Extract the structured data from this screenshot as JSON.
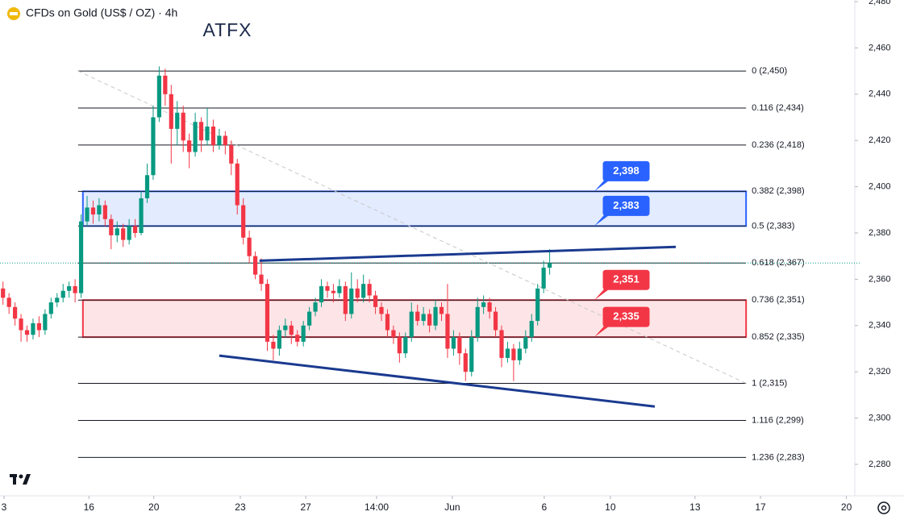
{
  "chart_data": {
    "type": "candlestick",
    "title": "CFDs on Gold (US$ / OZ) · 4h",
    "brand": "ATFX",
    "up_color": "#089981",
    "down_color": "#f23645",
    "ohlc": [
      [
        2356,
        2359,
        2349,
        2352
      ],
      [
        2352,
        2354,
        2345,
        2348
      ],
      [
        2348,
        2350,
        2340,
        2343
      ],
      [
        2343,
        2345,
        2333,
        2338
      ],
      [
        2338,
        2340,
        2333,
        2336
      ],
      [
        2336,
        2343,
        2334,
        2341
      ],
      [
        2341,
        2344,
        2335,
        2338
      ],
      [
        2338,
        2347,
        2336,
        2345
      ],
      [
        2345,
        2352,
        2343,
        2350
      ],
      [
        2350,
        2354,
        2348,
        2352
      ],
      [
        2352,
        2358,
        2350,
        2355
      ],
      [
        2355,
        2359,
        2352,
        2357
      ],
      [
        2357,
        2360,
        2350,
        2354
      ],
      [
        2354,
        2388,
        2352,
        2385
      ],
      [
        2385,
        2396,
        2383,
        2391
      ],
      [
        2391,
        2394,
        2384,
        2388
      ],
      [
        2388,
        2395,
        2385,
        2392
      ],
      [
        2392,
        2394,
        2383,
        2386
      ],
      [
        2386,
        2388,
        2373,
        2379
      ],
      [
        2379,
        2385,
        2376,
        2382
      ],
      [
        2382,
        2384,
        2374,
        2377
      ],
      [
        2377,
        2386,
        2375,
        2383
      ],
      [
        2383,
        2386,
        2378,
        2380
      ],
      [
        2380,
        2398,
        2379,
        2395
      ],
      [
        2395,
        2410,
        2393,
        2405
      ],
      [
        2405,
        2435,
        2403,
        2430
      ],
      [
        2430,
        2452,
        2428,
        2448
      ],
      [
        2448,
        2451,
        2435,
        2440
      ],
      [
        2440,
        2444,
        2410,
        2425
      ],
      [
        2425,
        2437,
        2418,
        2432
      ],
      [
        2432,
        2435,
        2415,
        2420
      ],
      [
        2420,
        2423,
        2408,
        2415
      ],
      [
        2415,
        2432,
        2413,
        2428
      ],
      [
        2428,
        2430,
        2415,
        2420
      ],
      [
        2420,
        2434,
        2418,
        2426
      ],
      [
        2426,
        2429,
        2415,
        2418
      ],
      [
        2418,
        2425,
        2416,
        2422
      ],
      [
        2422,
        2424,
        2414,
        2418
      ],
      [
        2418,
        2420,
        2405,
        2410
      ],
      [
        2410,
        2412,
        2388,
        2392
      ],
      [
        2392,
        2395,
        2375,
        2378
      ],
      [
        2378,
        2381,
        2367,
        2370
      ],
      [
        2370,
        2372,
        2360,
        2362
      ],
      [
        2362,
        2369,
        2355,
        2358
      ],
      [
        2358,
        2360,
        2329,
        2333
      ],
      [
        2333,
        2336,
        2325,
        2330
      ],
      [
        2330,
        2340,
        2327,
        2338
      ],
      [
        2338,
        2343,
        2335,
        2340
      ],
      [
        2340,
        2342,
        2332,
        2336
      ],
      [
        2336,
        2338,
        2331,
        2333
      ],
      [
        2333,
        2342,
        2331,
        2340
      ],
      [
        2340,
        2348,
        2338,
        2346
      ],
      [
        2346,
        2352,
        2344,
        2350
      ],
      [
        2350,
        2360,
        2348,
        2357
      ],
      [
        2357,
        2359,
        2352,
        2355
      ],
      [
        2355,
        2358,
        2350,
        2354
      ],
      [
        2354,
        2360,
        2352,
        2357
      ],
      [
        2357,
        2359,
        2342,
        2345
      ],
      [
        2345,
        2363,
        2343,
        2356
      ],
      [
        2356,
        2360,
        2350,
        2352
      ],
      [
        2352,
        2362,
        2350,
        2358
      ],
      [
        2358,
        2360,
        2350,
        2353
      ],
      [
        2353,
        2355,
        2345,
        2348
      ],
      [
        2348,
        2350,
        2342,
        2345
      ],
      [
        2345,
        2347,
        2335,
        2338
      ],
      [
        2338,
        2340,
        2332,
        2335
      ],
      [
        2335,
        2337,
        2324,
        2328
      ],
      [
        2328,
        2337,
        2326,
        2335
      ],
      [
        2335,
        2350,
        2333,
        2346
      ],
      [
        2346,
        2349,
        2340,
        2342
      ],
      [
        2342,
        2348,
        2340,
        2345
      ],
      [
        2345,
        2347,
        2337,
        2340
      ],
      [
        2340,
        2351,
        2338,
        2348
      ],
      [
        2348,
        2350,
        2342,
        2345
      ],
      [
        2345,
        2358,
        2326,
        2330
      ],
      [
        2330,
        2338,
        2327,
        2335
      ],
      [
        2335,
        2337,
        2323,
        2328
      ],
      [
        2328,
        2330,
        2316,
        2320
      ],
      [
        2320,
        2338,
        2318,
        2335
      ],
      [
        2335,
        2352,
        2333,
        2348
      ],
      [
        2348,
        2353,
        2345,
        2350
      ],
      [
        2350,
        2352,
        2343,
        2346
      ],
      [
        2346,
        2348,
        2335,
        2338
      ],
      [
        2338,
        2340,
        2322,
        2326
      ],
      [
        2326,
        2333,
        2324,
        2330
      ],
      [
        2330,
        2332,
        2316,
        2325
      ],
      [
        2325,
        2333,
        2323,
        2330
      ],
      [
        2330,
        2338,
        2328,
        2335
      ],
      [
        2335,
        2345,
        2333,
        2342
      ],
      [
        2342,
        2358,
        2340,
        2356
      ],
      [
        2356,
        2368,
        2354,
        2365
      ],
      [
        2365,
        2373,
        2362,
        2367
      ]
    ],
    "xlim": [
      -0.5,
      141.8
    ],
    "xticks": [
      {
        "value": 0.17,
        "label": "3"
      },
      {
        "value": 14.3,
        "label": "16"
      },
      {
        "value": 25.1,
        "label": "20"
      },
      {
        "value": 39.5,
        "label": "23"
      },
      {
        "value": 50.4,
        "label": "27"
      },
      {
        "value": 62.2,
        "label": "14:00"
      },
      {
        "value": 74.8,
        "label": "Jun"
      },
      {
        "value": 90.1,
        "label": "6"
      },
      {
        "value": 101.1,
        "label": "10"
      },
      {
        "value": 115.2,
        "label": "13"
      },
      {
        "value": 126.1,
        "label": "17"
      },
      {
        "value": 140.4,
        "label": "20"
      }
    ],
    "ylim": [
      2266.4,
      2480.7
    ],
    "yticks": [
      {
        "value": 2280,
        "label": "2,280"
      },
      {
        "value": 2300,
        "label": "2,300"
      },
      {
        "value": 2320,
        "label": "2,320"
      },
      {
        "value": 2340,
        "label": "2,340"
      },
      {
        "value": 2360,
        "label": "2,360"
      },
      {
        "value": 2380,
        "label": "2,380"
      },
      {
        "value": 2400,
        "label": "2,400"
      },
      {
        "value": 2420,
        "label": "2,420"
      },
      {
        "value": 2440,
        "label": "2,440"
      },
      {
        "value": 2460,
        "label": "2,460"
      },
      {
        "value": 2480,
        "label": "2,480"
      }
    ],
    "current_price": 2367,
    "fib_x": [
      12.5,
      123.7
    ],
    "fib_levels": [
      {
        "value": 2450,
        "label": "0 (2,450)"
      },
      {
        "value": 2434,
        "label": "0.116 (2,434)"
      },
      {
        "value": 2418,
        "label": "0.236 (2,418)"
      },
      {
        "value": 2398,
        "label": "0.382 (2,398)"
      },
      {
        "value": 2383,
        "label": "0.5 (2,383)"
      },
      {
        "value": 2367,
        "label": "0.618 (2,367)"
      },
      {
        "value": 2351,
        "label": "0.736 (2,351)"
      },
      {
        "value": 2335,
        "label": "0.852 (2,335)"
      },
      {
        "value": 2315,
        "label": "1 (2,315)"
      },
      {
        "value": 2299,
        "label": "1.116 (2,299)"
      },
      {
        "value": 2283,
        "label": "1.236 (2,283)"
      }
    ],
    "zones": [
      {
        "color": "#2962ff",
        "x": [
          13.3,
          123.7
        ],
        "low": {
          "value": 2383,
          "label": "2,383"
        },
        "high": {
          "value": 2398,
          "label": "2,398"
        }
      },
      {
        "color": "#f23645",
        "x": [
          13.3,
          123.7
        ],
        "low": {
          "value": 2335,
          "label": "2,335"
        },
        "high": {
          "value": 2351,
          "label": "2,351"
        }
      }
    ],
    "trendlines": [
      {
        "color": "#1a3a8f",
        "x": [
          42.7,
          112
        ],
        "y": [
          2368,
          2374
        ]
      },
      {
        "color": "#1a3a8f",
        "x": [
          36,
          108.5
        ],
        "y": [
          2327,
          2305
        ]
      }
    ],
    "diagonal": {
      "color": "#c8c8c8",
      "x": [
        12.5,
        123.7
      ],
      "y": [
        2450,
        2315
      ]
    }
  }
}
